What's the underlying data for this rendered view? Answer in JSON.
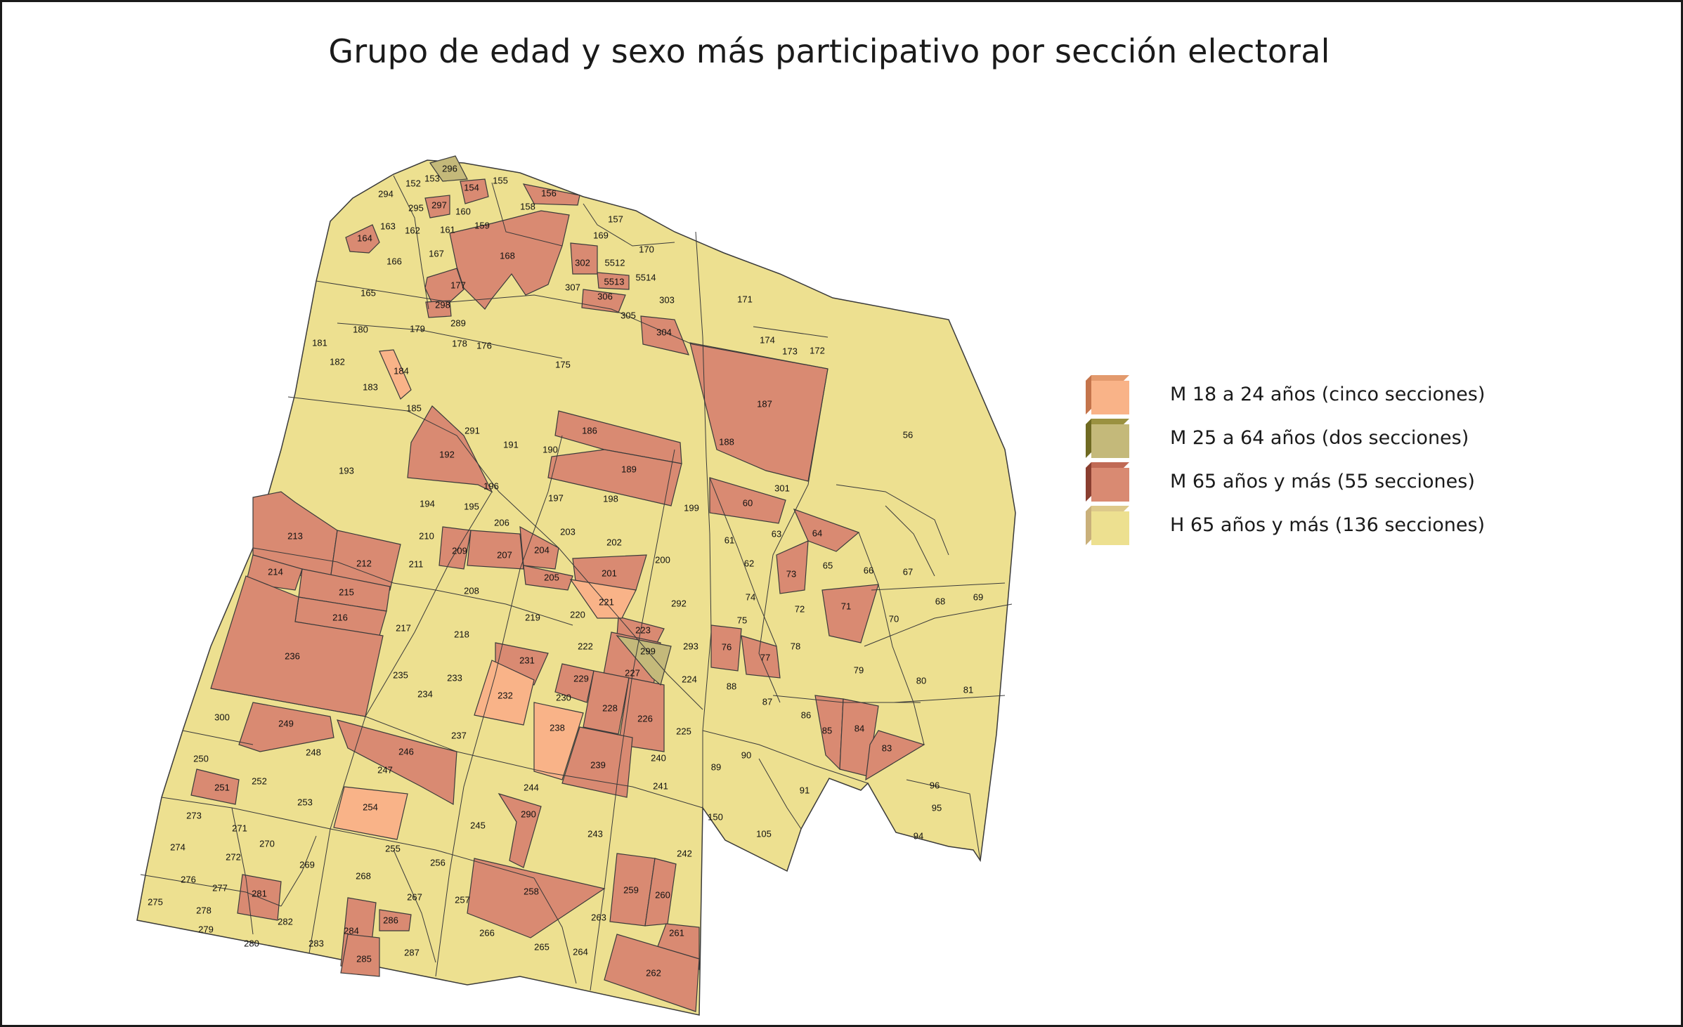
{
  "title": "Grupo de edad y sexo más participativo por sección electoral",
  "colors": {
    "m_18_24": "#f9b388",
    "m_25_64": "#c4b97a",
    "m_65_mas": "#d98a72",
    "h_65_mas": "#ede090",
    "border": "#3a3a3a"
  },
  "legend": [
    {
      "label": "M 18 a 24 años (cinco secciones)",
      "category": "m_18_24",
      "face": "#f9b388",
      "side": "#c4744b",
      "top": "#e39a6d"
    },
    {
      "label": "M 25 a 64 años (dos secciones)",
      "category": "m_25_64",
      "face": "#c4b97a",
      "side": "#6f6a22",
      "top": "#9a9140"
    },
    {
      "label": "M 65 años y más (55 secciones)",
      "category": "m_65_mas",
      "face": "#d98a72",
      "side": "#8a3e30",
      "top": "#c06a55"
    },
    {
      "label": "H 65 años y más (136 secciones)",
      "category": "h_65_mas",
      "face": "#ede090",
      "side": "#c9b07a",
      "top": "#ddc98a"
    }
  ],
  "sections": {
    "m_18_24": [
      "184",
      "221",
      "232",
      "238",
      "254"
    ],
    "m_25_64": [
      "296",
      "299"
    ],
    "m_65_mas": [
      "156",
      "154",
      "164",
      "297",
      "168",
      "177",
      "298",
      "302",
      "5513",
      "306",
      "304",
      "187",
      "186",
      "189",
      "192",
      "60",
      "64",
      "73",
      "71",
      "213",
      "212",
      "214",
      "215",
      "216",
      "236",
      "209",
      "207",
      "204",
      "205",
      "201",
      "223",
      "231",
      "229",
      "227",
      "228",
      "226",
      "76",
      "77",
      "85",
      "84",
      "83",
      "249",
      "246",
      "251",
      "239",
      "290",
      "258",
      "259",
      "260",
      "261",
      "262",
      "281",
      "284",
      "285",
      "286"
    ],
    "labels": [
      "296",
      "153",
      "152",
      "294",
      "154",
      "155",
      "156",
      "297",
      "295",
      "160",
      "163",
      "162",
      "159",
      "158",
      "157",
      "164",
      "161",
      "166",
      "167",
      "168",
      "169",
      "170",
      "302",
      "5512",
      "5514",
      "5513",
      "165",
      "177",
      "307",
      "306",
      "303",
      "305",
      "171",
      "298",
      "289",
      "179",
      "180",
      "178",
      "176",
      "304",
      "174",
      "173",
      "172",
      "181",
      "182",
      "175",
      "184",
      "183",
      "187",
      "56",
      "185",
      "193",
      "291",
      "191",
      "186",
      "190",
      "189",
      "192",
      "188",
      "196",
      "195",
      "194",
      "60",
      "301",
      "199",
      "197",
      "198",
      "206",
      "203",
      "202",
      "210",
      "209",
      "207",
      "204",
      "213",
      "212",
      "64",
      "63",
      "61",
      "211",
      "201",
      "200",
      "214",
      "205",
      "65",
      "66",
      "73",
      "62",
      "67",
      "215",
      "208",
      "221",
      "292",
      "74",
      "72",
      "68",
      "69",
      "71",
      "216",
      "219",
      "220",
      "70",
      "217",
      "218",
      "223",
      "75",
      "299",
      "293",
      "222",
      "76",
      "77",
      "78",
      "236",
      "231",
      "229",
      "227",
      "224",
      "233",
      "235",
      "234",
      "79",
      "80",
      "88",
      "232",
      "230",
      "81",
      "87",
      "228",
      "226",
      "300",
      "238",
      "86",
      "85",
      "84",
      "249",
      "225",
      "83",
      "237",
      "246",
      "248",
      "240",
      "89",
      "90",
      "250",
      "247",
      "252",
      "239",
      "96",
      "251",
      "244",
      "241",
      "91",
      "95",
      "253",
      "254",
      "273",
      "271",
      "290",
      "150",
      "245",
      "243",
      "94",
      "105",
      "255",
      "274",
      "270",
      "272",
      "242",
      "269",
      "256",
      "276",
      "268",
      "277",
      "281",
      "258",
      "259",
      "267",
      "260",
      "257",
      "275",
      "278",
      "263",
      "282",
      "286",
      "261",
      "279",
      "284",
      "266",
      "283",
      "265",
      "264",
      "280",
      "287",
      "285",
      "262"
    ]
  }
}
